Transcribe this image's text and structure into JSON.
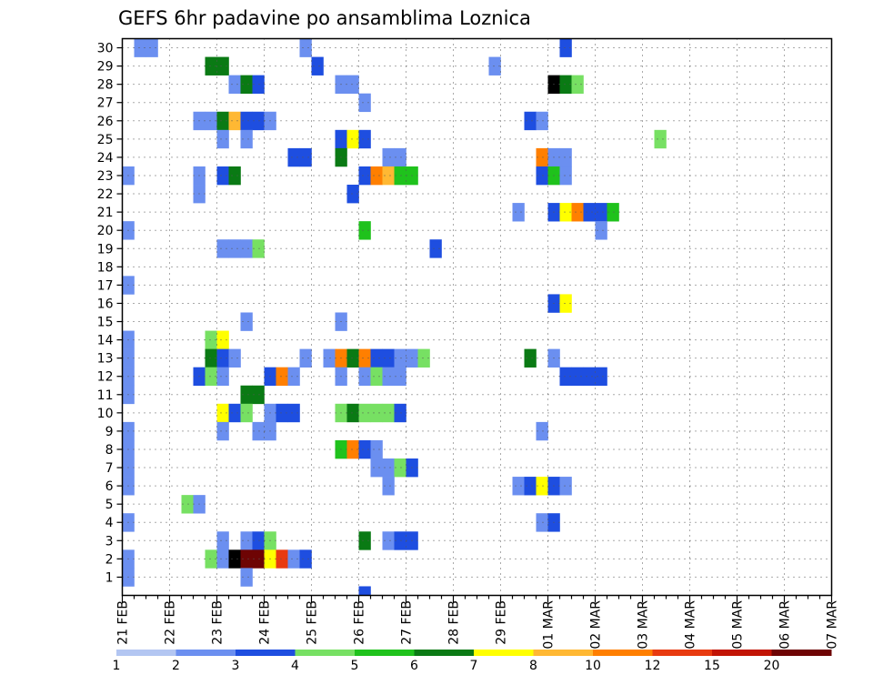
{
  "chart_data": {
    "type": "heatmap",
    "title": "GEFS 6hr padavine po ansamblima Loznica",
    "xlabel": "",
    "ylabel": "",
    "y_ticks": [
      1,
      2,
      3,
      4,
      5,
      6,
      7,
      8,
      9,
      10,
      11,
      12,
      13,
      14,
      15,
      16,
      17,
      18,
      19,
      20,
      21,
      22,
      23,
      24,
      25,
      26,
      27,
      28,
      29,
      30
    ],
    "y_range": [
      0,
      30.5
    ],
    "x_ticks": [
      "21 FEB",
      "22 FEB",
      "23 FEB",
      "24 FEB",
      "25 FEB",
      "26 FEB",
      "27 FEB",
      "28 FEB",
      "29 FEB",
      "01 MAR",
      "02 MAR",
      "03 MAR",
      "04 MAR",
      "05 MAR",
      "06 MAR",
      "07 MAR"
    ],
    "x_unit": "6-hour step (4 steps per day)",
    "x_range": [
      0,
      60
    ],
    "grid": true,
    "legend_position": "bottom",
    "levels": [
      "1",
      "2",
      "3",
      "4",
      "5",
      "6",
      "7",
      "8",
      "10",
      "12",
      "15",
      "20"
    ],
    "colors": [
      "#b3c6f2",
      "#6b8ff0",
      "#1e4ee0",
      "#77e063",
      "#1fc21c",
      "#0a7a14",
      "#ffff00",
      "#ffb833",
      "#ff7f00",
      "#e83a10",
      "#c21405",
      "#6e0404"
    ],
    "cells": [
      [
        1,
        30,
        1
      ],
      [
        2,
        30,
        1
      ],
      [
        15,
        30,
        1
      ],
      [
        37,
        30,
        2
      ],
      [
        7,
        29,
        5
      ],
      [
        8,
        29,
        5
      ],
      [
        16,
        29,
        2
      ],
      [
        31,
        29,
        1
      ],
      [
        9,
        28,
        1
      ],
      [
        10,
        28,
        5
      ],
      [
        11,
        28,
        2
      ],
      [
        18,
        28,
        1
      ],
      [
        19,
        28,
        1
      ],
      [
        36,
        28,
        12
      ],
      [
        37,
        28,
        5
      ],
      [
        38,
        28,
        3
      ],
      [
        20,
        27,
        1
      ],
      [
        6,
        26,
        1
      ],
      [
        7,
        26,
        1
      ],
      [
        8,
        26,
        5
      ],
      [
        9,
        26,
        7
      ],
      [
        10,
        26,
        2
      ],
      [
        11,
        26,
        2
      ],
      [
        12,
        26,
        1
      ],
      [
        34,
        26,
        2
      ],
      [
        35,
        26,
        1
      ],
      [
        8,
        25,
        1
      ],
      [
        10,
        25,
        1
      ],
      [
        18,
        25,
        2
      ],
      [
        19,
        25,
        6
      ],
      [
        20,
        25,
        2
      ],
      [
        45,
        25,
        3
      ],
      [
        14,
        24,
        2
      ],
      [
        15,
        24,
        2
      ],
      [
        18,
        24,
        5
      ],
      [
        22,
        24,
        1
      ],
      [
        23,
        24,
        1
      ],
      [
        35,
        24,
        8
      ],
      [
        36,
        24,
        1
      ],
      [
        37,
        24,
        1
      ],
      [
        0,
        23,
        1
      ],
      [
        6,
        23,
        1
      ],
      [
        8,
        23,
        2
      ],
      [
        9,
        23,
        5
      ],
      [
        20,
        23,
        2
      ],
      [
        21,
        23,
        8
      ],
      [
        22,
        23,
        7
      ],
      [
        23,
        23,
        4
      ],
      [
        24,
        23,
        4
      ],
      [
        35,
        23,
        2
      ],
      [
        36,
        23,
        4
      ],
      [
        37,
        23,
        1
      ],
      [
        6,
        22,
        1
      ],
      [
        19,
        22,
        2
      ],
      [
        33,
        21,
        1
      ],
      [
        36,
        21,
        2
      ],
      [
        37,
        21,
        6
      ],
      [
        38,
        21,
        8
      ],
      [
        39,
        21,
        2
      ],
      [
        40,
        21,
        2
      ],
      [
        41,
        21,
        4
      ],
      [
        0,
        20,
        1
      ],
      [
        20,
        20,
        4
      ],
      [
        40,
        20,
        1
      ],
      [
        8,
        19,
        1
      ],
      [
        9,
        19,
        1
      ],
      [
        10,
        19,
        1
      ],
      [
        11,
        19,
        3
      ],
      [
        26,
        19,
        2
      ],
      [
        0,
        17,
        1
      ],
      [
        36,
        16,
        2
      ],
      [
        37,
        16,
        6
      ],
      [
        10,
        15,
        1
      ],
      [
        18,
        15,
        1
      ],
      [
        0,
        14,
        1
      ],
      [
        7,
        14,
        3
      ],
      [
        8,
        14,
        6
      ],
      [
        0,
        13,
        1
      ],
      [
        7,
        13,
        5
      ],
      [
        8,
        13,
        2
      ],
      [
        9,
        13,
        1
      ],
      [
        15,
        13,
        1
      ],
      [
        17,
        13,
        1
      ],
      [
        18,
        13,
        8
      ],
      [
        19,
        13,
        5
      ],
      [
        20,
        13,
        8
      ],
      [
        21,
        13,
        2
      ],
      [
        22,
        13,
        2
      ],
      [
        23,
        13,
        1
      ],
      [
        24,
        13,
        1
      ],
      [
        25,
        13,
        3
      ],
      [
        34,
        13,
        5
      ],
      [
        36,
        13,
        1
      ],
      [
        0,
        12,
        1
      ],
      [
        6,
        12,
        2
      ],
      [
        7,
        12,
        3
      ],
      [
        8,
        12,
        1
      ],
      [
        12,
        12,
        2
      ],
      [
        13,
        12,
        8
      ],
      [
        14,
        12,
        1
      ],
      [
        18,
        12,
        1
      ],
      [
        20,
        12,
        1
      ],
      [
        21,
        12,
        3
      ],
      [
        22,
        12,
        1
      ],
      [
        23,
        12,
        1
      ],
      [
        37,
        12,
        2
      ],
      [
        38,
        12,
        2
      ],
      [
        39,
        12,
        2
      ],
      [
        40,
        12,
        2
      ],
      [
        0,
        11,
        1
      ],
      [
        10,
        11,
        5
      ],
      [
        11,
        11,
        5
      ],
      [
        8,
        10,
        6
      ],
      [
        9,
        10,
        2
      ],
      [
        10,
        10,
        3
      ],
      [
        12,
        10,
        1
      ],
      [
        13,
        10,
        2
      ],
      [
        14,
        10,
        2
      ],
      [
        18,
        10,
        3
      ],
      [
        19,
        10,
        5
      ],
      [
        20,
        10,
        3
      ],
      [
        21,
        10,
        3
      ],
      [
        22,
        10,
        3
      ],
      [
        23,
        10,
        2
      ],
      [
        0,
        9,
        1
      ],
      [
        8,
        9,
        1
      ],
      [
        11,
        9,
        1
      ],
      [
        12,
        9,
        1
      ],
      [
        35,
        9,
        1
      ],
      [
        0,
        8,
        1
      ],
      [
        18,
        8,
        4
      ],
      [
        19,
        8,
        8
      ],
      [
        20,
        8,
        2
      ],
      [
        21,
        8,
        1
      ],
      [
        0,
        7,
        1
      ],
      [
        21,
        7,
        1
      ],
      [
        22,
        7,
        1
      ],
      [
        23,
        7,
        3
      ],
      [
        24,
        7,
        2
      ],
      [
        0,
        6,
        1
      ],
      [
        22,
        6,
        1
      ],
      [
        33,
        6,
        1
      ],
      [
        34,
        6,
        2
      ],
      [
        35,
        6,
        6
      ],
      [
        36,
        6,
        2
      ],
      [
        37,
        6,
        1
      ],
      [
        5,
        5,
        3
      ],
      [
        6,
        5,
        1
      ],
      [
        0,
        4,
        1
      ],
      [
        35,
        4,
        1
      ],
      [
        36,
        4,
        2
      ],
      [
        8,
        3,
        1
      ],
      [
        10,
        3,
        1
      ],
      [
        11,
        3,
        2
      ],
      [
        12,
        3,
        3
      ],
      [
        20,
        3,
        5
      ],
      [
        22,
        3,
        1
      ],
      [
        23,
        3,
        2
      ],
      [
        24,
        3,
        2
      ],
      [
        0,
        2,
        1
      ],
      [
        7,
        2,
        3
      ],
      [
        8,
        2,
        1
      ],
      [
        9,
        2,
        12
      ],
      [
        10,
        2,
        11
      ],
      [
        11,
        2,
        11
      ],
      [
        12,
        2,
        6
      ],
      [
        13,
        2,
        9
      ],
      [
        14,
        2,
        1
      ],
      [
        15,
        2,
        2
      ],
      [
        0,
        1,
        1
      ],
      [
        10,
        1,
        1
      ],
      [
        20,
        0,
        2
      ]
    ]
  }
}
